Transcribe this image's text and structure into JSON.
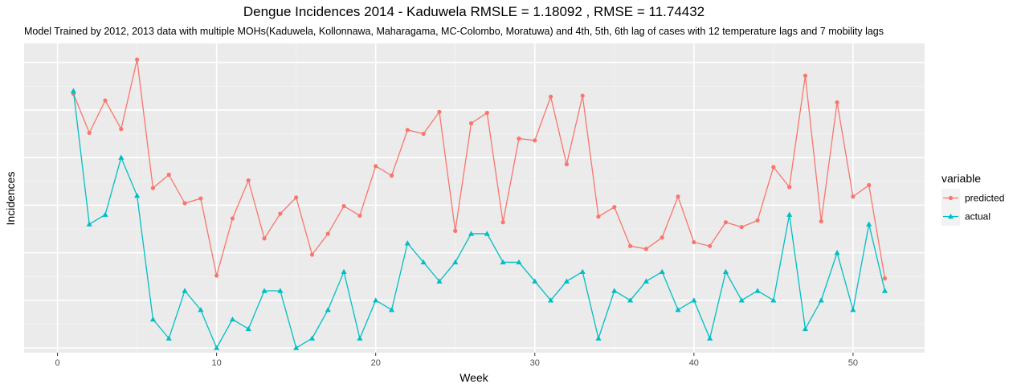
{
  "chart_data": {
    "type": "line",
    "title": "Dengue Incidences 2014 -  Kaduwela  RMSLE =  1.18092 , RMSE =  11.74432",
    "subtitle": "Model Trained by 2012, 2013 data with multiple MOHs(Kaduwela, Kollonnawa, Maharagama, MC-Colombo, Moratuwa) and 4th, 5th, 6th lag of cases with 12 temperature lags and 7 mobility lags",
    "xlabel": "Week",
    "ylabel": "Incidences",
    "xlim": [
      -2.1,
      54.5
    ],
    "ylim": [
      -0.5,
      32
    ],
    "x_ticks": [
      0,
      10,
      20,
      30,
      40,
      50
    ],
    "y_gridlines": [
      0,
      5,
      10,
      15,
      20,
      25,
      30
    ],
    "x_minor_gridlines": [
      5,
      15,
      25,
      35,
      45
    ],
    "grid": true,
    "legend": {
      "title": "variable",
      "position": "right"
    },
    "x": [
      1,
      2,
      3,
      4,
      5,
      6,
      7,
      8,
      9,
      10,
      11,
      12,
      13,
      14,
      15,
      16,
      17,
      18,
      19,
      20,
      21,
      22,
      23,
      24,
      25,
      26,
      27,
      28,
      29,
      30,
      31,
      32,
      33,
      34,
      35,
      36,
      37,
      38,
      39,
      40,
      41,
      42,
      43,
      44,
      45,
      46,
      47,
      48,
      49,
      50,
      51,
      52
    ],
    "series": [
      {
        "name": "predicted",
        "color": "#F8766D",
        "marker": "circle",
        "values": [
          26.7,
          22.6,
          26.0,
          23.0,
          30.3,
          16.8,
          18.2,
          15.2,
          15.7,
          7.6,
          13.6,
          17.6,
          11.5,
          14.1,
          15.8,
          9.8,
          12.0,
          14.9,
          13.9,
          19.1,
          18.1,
          22.9,
          22.5,
          24.8,
          12.3,
          23.6,
          24.7,
          13.2,
          22.0,
          21.8,
          26.4,
          19.3,
          26.5,
          13.8,
          14.8,
          10.7,
          10.4,
          11.6,
          15.9,
          11.1,
          10.7,
          13.2,
          12.7,
          13.4,
          19.0,
          16.9,
          28.6,
          13.3,
          25.8,
          15.9,
          17.1,
          7.3
        ]
      },
      {
        "name": "actual",
        "color": "#00BFC4",
        "marker": "triangle",
        "values": [
          27,
          13,
          14,
          20,
          16,
          3,
          1,
          6,
          4,
          0,
          3,
          2,
          6,
          6,
          0,
          1,
          4,
          8,
          1,
          5,
          4,
          11,
          9,
          7,
          9,
          12,
          12,
          9,
          9,
          7,
          5,
          7,
          8,
          1,
          6,
          5,
          7,
          8,
          4,
          5,
          1,
          8,
          5,
          6,
          5,
          14,
          2,
          5,
          10,
          4,
          13,
          6
        ]
      }
    ]
  }
}
